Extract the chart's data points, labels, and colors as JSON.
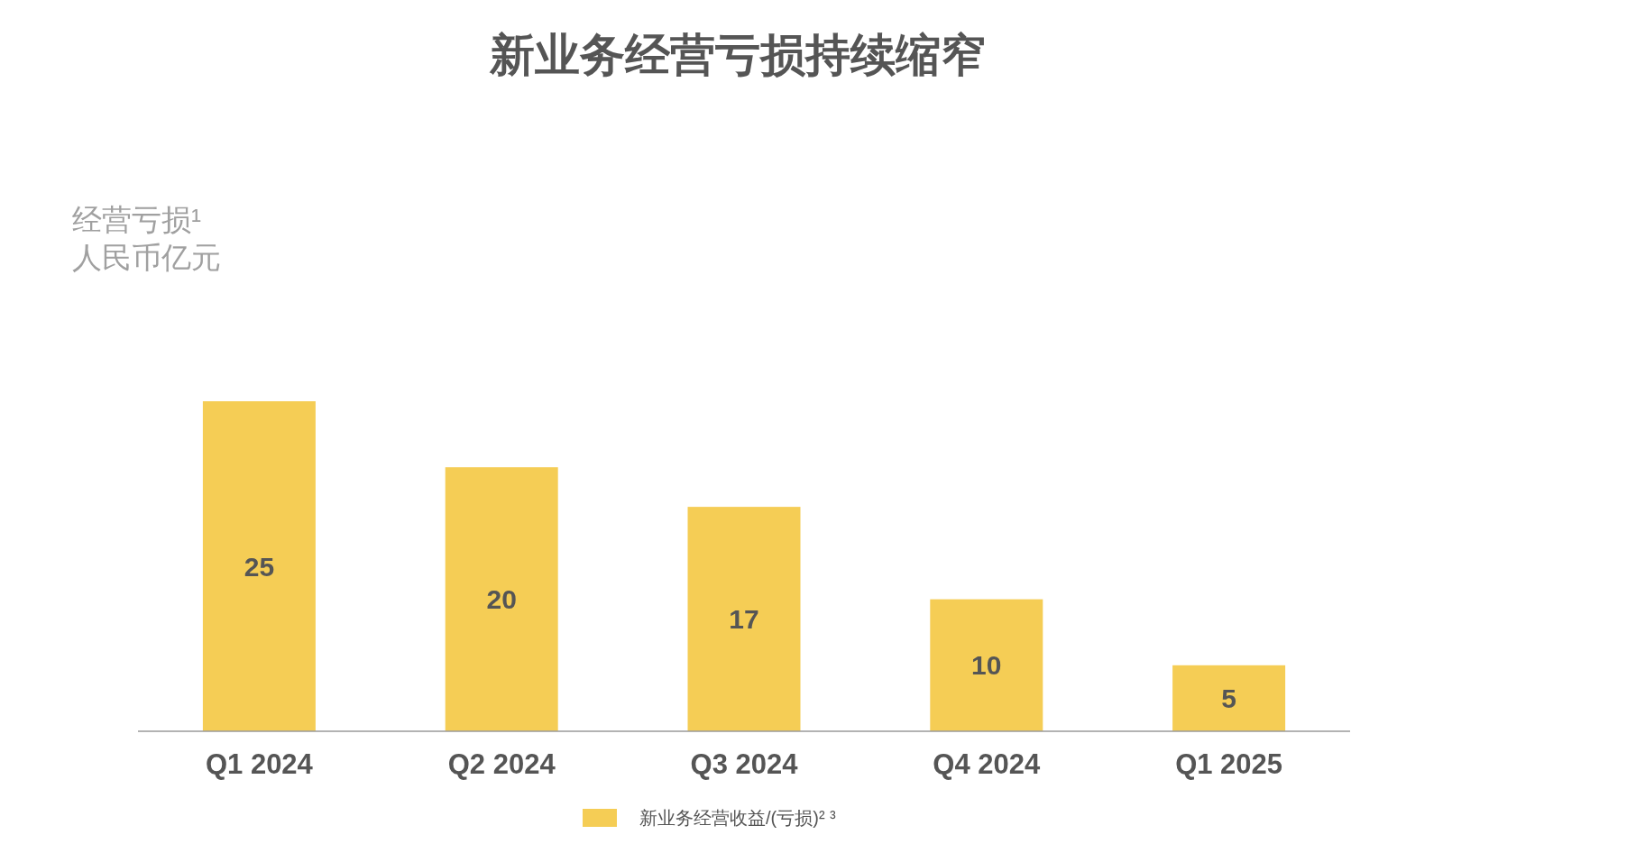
{
  "chart_data": {
    "type": "bar",
    "title": "新业务经营亏损持续缩窄",
    "annotations": [
      "经营亏损¹\n人民币亿元"
    ],
    "categories": [
      "Q1 2024",
      "Q2 2024",
      "Q3 2024",
      "Q4 2024",
      "Q1 2025"
    ],
    "series": [
      {
        "name": "新业务经营收益/(亏损)² ³",
        "color": "#f5cd55",
        "values": [
          25,
          20,
          17,
          10,
          5
        ]
      }
    ],
    "data_labels": true,
    "legend": "bottom",
    "grid": false
  }
}
